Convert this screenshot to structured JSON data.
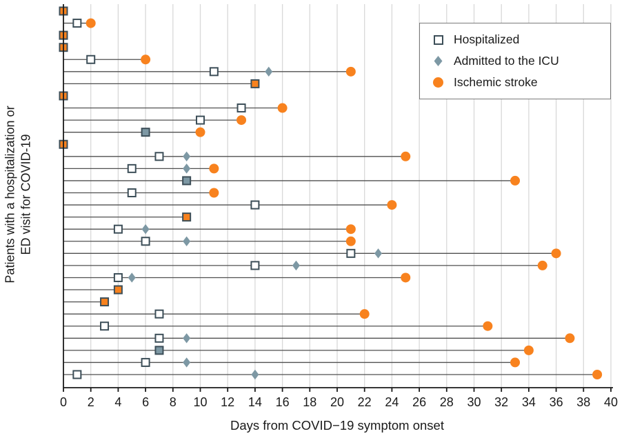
{
  "chart_data": {
    "type": "scatter",
    "title": "",
    "xlabel": "Days from COVID−19 symptom onset",
    "ylabel_lines": [
      "Patients with a hospitalization or",
      "ED visit for  COVID-19"
    ],
    "xlim": [
      0,
      40
    ],
    "xticks": [
      0,
      2,
      4,
      6,
      8,
      10,
      12,
      14,
      16,
      18,
      20,
      22,
      24,
      26,
      28,
      30,
      32,
      34,
      36,
      38,
      40
    ],
    "grid": "vertical",
    "legend_position": "upper right",
    "legend": [
      {
        "label": "Hospitalized",
        "marker": "open-square",
        "color": "#3c4e58"
      },
      {
        "label": "Admitted to the ICU",
        "marker": "filled-diamond",
        "color": "#7d98a4"
      },
      {
        "label": "Ischemic stroke",
        "marker": "filled-circle",
        "color": "#f8821e"
      }
    ],
    "colors": {
      "hospitalized": "#3c4e58",
      "icu": "#7d98a4",
      "stroke": "#f8821e",
      "timeline": "#4f4f4f",
      "grid": "#d8d8d8",
      "axis": "#1a1a1a"
    },
    "patients": [
      {
        "hospitalized": 0,
        "icu": null,
        "stroke": 0
      },
      {
        "hospitalized": 1,
        "icu": null,
        "stroke": 2
      },
      {
        "hospitalized": 0,
        "icu": null,
        "stroke": 0
      },
      {
        "hospitalized": 0,
        "icu": null,
        "stroke": 0
      },
      {
        "hospitalized": 2,
        "icu": 6,
        "stroke": 6
      },
      {
        "hospitalized": 11,
        "icu": 15,
        "stroke": 21
      },
      {
        "hospitalized": 14,
        "icu": null,
        "stroke": 14
      },
      {
        "hospitalized": 0,
        "icu": null,
        "stroke": 0
      },
      {
        "hospitalized": 13,
        "icu": null,
        "stroke": 16
      },
      {
        "hospitalized": 10,
        "icu": null,
        "stroke": 13
      },
      {
        "hospitalized": 6,
        "icu": 6,
        "stroke": 10
      },
      {
        "hospitalized": 0,
        "icu": null,
        "stroke": 0
      },
      {
        "hospitalized": 7,
        "icu": 9,
        "stroke": 25
      },
      {
        "hospitalized": 5,
        "icu": 9,
        "stroke": 11
      },
      {
        "hospitalized": 9,
        "icu": 9,
        "stroke": 33
      },
      {
        "hospitalized": 5,
        "icu": null,
        "stroke": 11
      },
      {
        "hospitalized": 14,
        "icu": null,
        "stroke": 24
      },
      {
        "hospitalized": 9,
        "icu": null,
        "stroke": 9
      },
      {
        "hospitalized": 4,
        "icu": 6,
        "stroke": 21
      },
      {
        "hospitalized": 6,
        "icu": 9,
        "stroke": 21
      },
      {
        "hospitalized": 21,
        "icu": 23,
        "stroke": 36
      },
      {
        "hospitalized": 14,
        "icu": 17,
        "stroke": 35
      },
      {
        "hospitalized": 4,
        "icu": 5,
        "stroke": 25
      },
      {
        "hospitalized": 4,
        "icu": null,
        "stroke": 4
      },
      {
        "hospitalized": 3,
        "icu": null,
        "stroke": 3
      },
      {
        "hospitalized": 7,
        "icu": null,
        "stroke": 22
      },
      {
        "hospitalized": 3,
        "icu": null,
        "stroke": 31
      },
      {
        "hospitalized": 7,
        "icu": 9,
        "stroke": 37
      },
      {
        "hospitalized": 7,
        "icu": 7,
        "stroke": 34
      },
      {
        "hospitalized": 6,
        "icu": 9,
        "stroke": 33
      },
      {
        "hospitalized": 1,
        "icu": 14,
        "stroke": 39
      }
    ]
  }
}
